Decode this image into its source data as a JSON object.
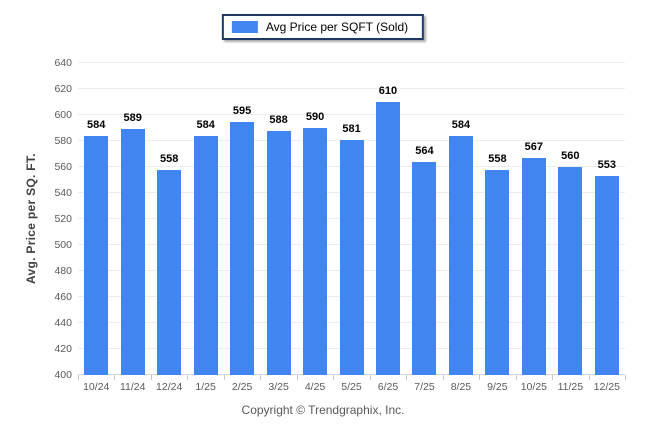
{
  "legend": {
    "label": "Avg Price per SQFT (Sold)",
    "swatch_color": "#4186f0"
  },
  "chart_data": {
    "type": "bar",
    "categories": [
      "10/24",
      "11/24",
      "12/24",
      "1/25",
      "2/25",
      "3/25",
      "4/25",
      "5/25",
      "6/25",
      "7/25",
      "8/25",
      "9/25",
      "10/25",
      "11/25",
      "12/25"
    ],
    "values": [
      584,
      589,
      558,
      584,
      595,
      588,
      590,
      581,
      610,
      564,
      584,
      558,
      567,
      560,
      553
    ],
    "title": "",
    "xlabel": "",
    "ylabel": "Avg. Price per SQ. FT.",
    "ylim": [
      400,
      640
    ],
    "ytick_step": 20,
    "bar_color": "#4186f0",
    "grid": "horizontal",
    "legend_position": "top-center",
    "value_labels": true
  },
  "footer": {
    "copyright": "Copyright © Trendgraphix, Inc."
  },
  "colors": {
    "bar": "#4186f0",
    "legend_border": "#1f3864",
    "gridline": "#ededed",
    "axis_text": "#595959",
    "value_label": "#000000"
  }
}
